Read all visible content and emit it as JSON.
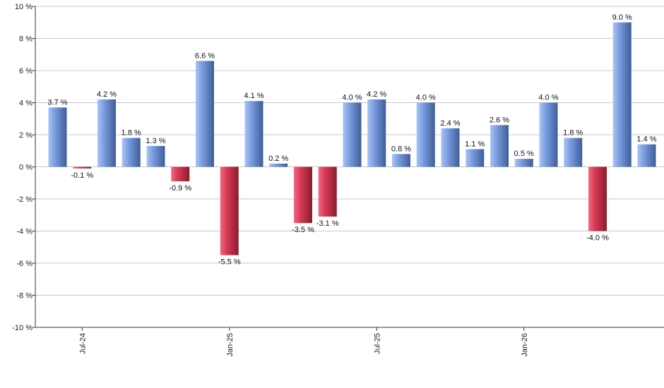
{
  "chart_data": {
    "type": "bar",
    "values": [
      3.7,
      -0.1,
      4.2,
      1.8,
      1.3,
      -0.9,
      6.6,
      -5.5,
      4.1,
      0.2,
      -3.5,
      -3.1,
      4.0,
      4.2,
      0.8,
      4.0,
      2.4,
      1.1,
      2.6,
      0.5,
      4.0,
      1.8,
      -4.0,
      9.0,
      1.4
    ],
    "data_labels": [
      "3.7 %",
      "-0.1 %",
      "4.2 %",
      "1.8 %",
      "1.3 %",
      "-0.9 %",
      "6.6 %",
      "-5.5 %",
      "4.1 %",
      "0.2 %",
      "-3.5 %",
      "-3.1 %",
      "4.0 %",
      "4.2 %",
      "0.8 %",
      "4.0 %",
      "2.4 %",
      "1.1 %",
      "2.6 %",
      "0.5 %",
      "4.0 %",
      "1.8 %",
      "-4.0 %",
      "9.0 %",
      "1.4 %"
    ],
    "x_ticks": [
      {
        "index": 1,
        "label": "Jul-24"
      },
      {
        "index": 7,
        "label": "Jan-25"
      },
      {
        "index": 13,
        "label": "Jul-25"
      },
      {
        "index": 19,
        "label": "Jan-26"
      }
    ],
    "y_ticks": [
      "10 %",
      "8 %",
      "6 %",
      "4 %",
      "2 %",
      "0 %",
      "-2 %",
      "-4 %",
      "-6 %",
      "-8 %",
      "-10 %"
    ],
    "y_tick_values": [
      10,
      8,
      6,
      4,
      2,
      0,
      -2,
      -4,
      -6,
      -8,
      -10
    ],
    "ylim": [
      -10,
      10
    ],
    "grid": true,
    "title": "",
    "xlabel": "",
    "ylabel": "",
    "colors": {
      "positive_light": "#a9c4f5",
      "positive_mid": "#7a9de0",
      "positive_dark": "#3e5d99",
      "negative_light": "#f06b80",
      "negative_mid": "#d93a56",
      "negative_dark": "#8c1a2c",
      "grid": "#c8c8c8",
      "axis": "#333333"
    }
  }
}
